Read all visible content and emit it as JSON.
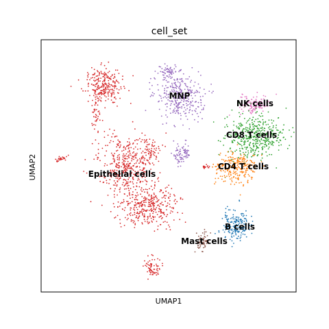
{
  "chart_data": {
    "type": "scatter",
    "title": "cell_set",
    "xlabel": "UMAP1",
    "ylabel": "UMAP2",
    "grid": false,
    "legend": "on-data labels",
    "ticks": "none",
    "series": [
      {
        "name": "Epithelial cells",
        "color": "#d62728"
      },
      {
        "name": "MNP",
        "color": "#9467bd"
      },
      {
        "name": "NK cells",
        "color": "#e377c2"
      },
      {
        "name": "CD8 T cells",
        "color": "#2ca02c"
      },
      {
        "name": "CD4 T cells",
        "color": "#ff7f0e"
      },
      {
        "name": "B cells",
        "color": "#1f77b4"
      },
      {
        "name": "Mast cells",
        "color": "#8c564b"
      }
    ]
  }
}
